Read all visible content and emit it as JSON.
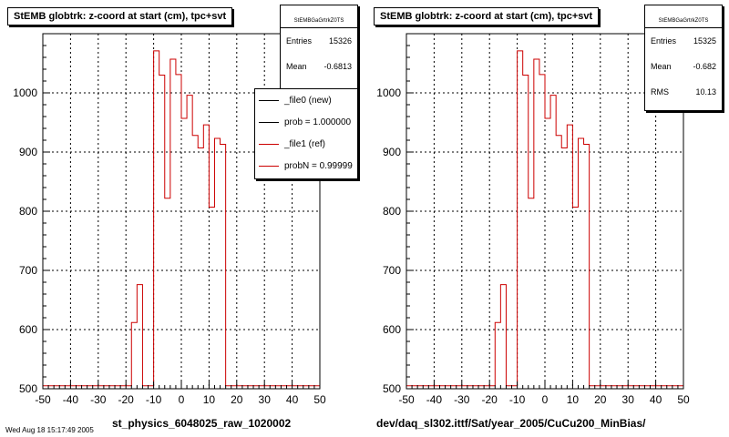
{
  "colors": {
    "new": "#000000",
    "ref": "#cc0000",
    "grid": "#000000"
  },
  "footer_text": "Wed Aug 18 15:17:49 2005",
  "chart_data": [
    {
      "type": "histogram",
      "title": "StEMB globtrk: z-coord at start (cm), tpc+svt",
      "xlabel": "st_physics_6048025_raw_1020002",
      "ylabel": "",
      "xlim": [
        -50,
        50
      ],
      "ylim": [
        500,
        1100
      ],
      "xticks": [
        -50,
        -40,
        -30,
        -20,
        -10,
        0,
        10,
        20,
        30,
        40,
        50
      ],
      "yticks": [
        500,
        600,
        700,
        800,
        900,
        1000
      ],
      "grid": true,
      "stats": {
        "name": "StEMBGaGrtrkZ0TS",
        "rows": [
          {
            "label": "Entries",
            "value": "15326"
          },
          {
            "label": "Mean",
            "value": "-0.6813"
          }
        ]
      },
      "legend": [
        {
          "label": "_file0 (new)",
          "color": "#000000"
        },
        {
          "label": "prob = 1.000000",
          "color": "#000000"
        },
        {
          "label": "_file1 (ref)",
          "color": "#cc0000"
        },
        {
          "label": "probN = 0.99999",
          "color": "#cc0000"
        }
      ],
      "bin_width": 2,
      "bin_edges_start": -50,
      "values": [
        505,
        505,
        505,
        505,
        505,
        505,
        505,
        505,
        505,
        505,
        505,
        505,
        505,
        505,
        505,
        505,
        612,
        676,
        505,
        505,
        1071,
        1030,
        822,
        1057,
        1031,
        957,
        996,
        928,
        907,
        946,
        807,
        923,
        913,
        505,
        505,
        505,
        505,
        505,
        505,
        505,
        505,
        505,
        505,
        505,
        505,
        505,
        505,
        505,
        505,
        505
      ]
    },
    {
      "type": "histogram",
      "title": "StEMB globtrk: z-coord at start (cm), tpc+svt",
      "xlabel": "dev/daq_sl302.ittf/Sat/year_2005/CuCu200_MinBias/",
      "ylabel": "",
      "xlim": [
        -50,
        50
      ],
      "ylim": [
        500,
        1100
      ],
      "xticks": [
        -50,
        -40,
        -30,
        -20,
        -10,
        0,
        10,
        20,
        30,
        40,
        50
      ],
      "yticks": [
        500,
        600,
        700,
        800,
        900,
        1000
      ],
      "grid": true,
      "stats": {
        "name": "StEMBGaGrtrkZ0TS",
        "rows": [
          {
            "label": "Entries",
            "value": "15325"
          },
          {
            "label": "Mean",
            "value": "-0.682"
          },
          {
            "label": "RMS",
            "value": "10.13"
          }
        ]
      },
      "legend": [],
      "bin_width": 2,
      "bin_edges_start": -50,
      "values": [
        505,
        505,
        505,
        505,
        505,
        505,
        505,
        505,
        505,
        505,
        505,
        505,
        505,
        505,
        505,
        505,
        612,
        676,
        505,
        505,
        1071,
        1030,
        822,
        1057,
        1031,
        957,
        996,
        928,
        907,
        946,
        807,
        923,
        913,
        505,
        505,
        505,
        505,
        505,
        505,
        505,
        505,
        505,
        505,
        505,
        505,
        505,
        505,
        505,
        505,
        505
      ]
    }
  ]
}
